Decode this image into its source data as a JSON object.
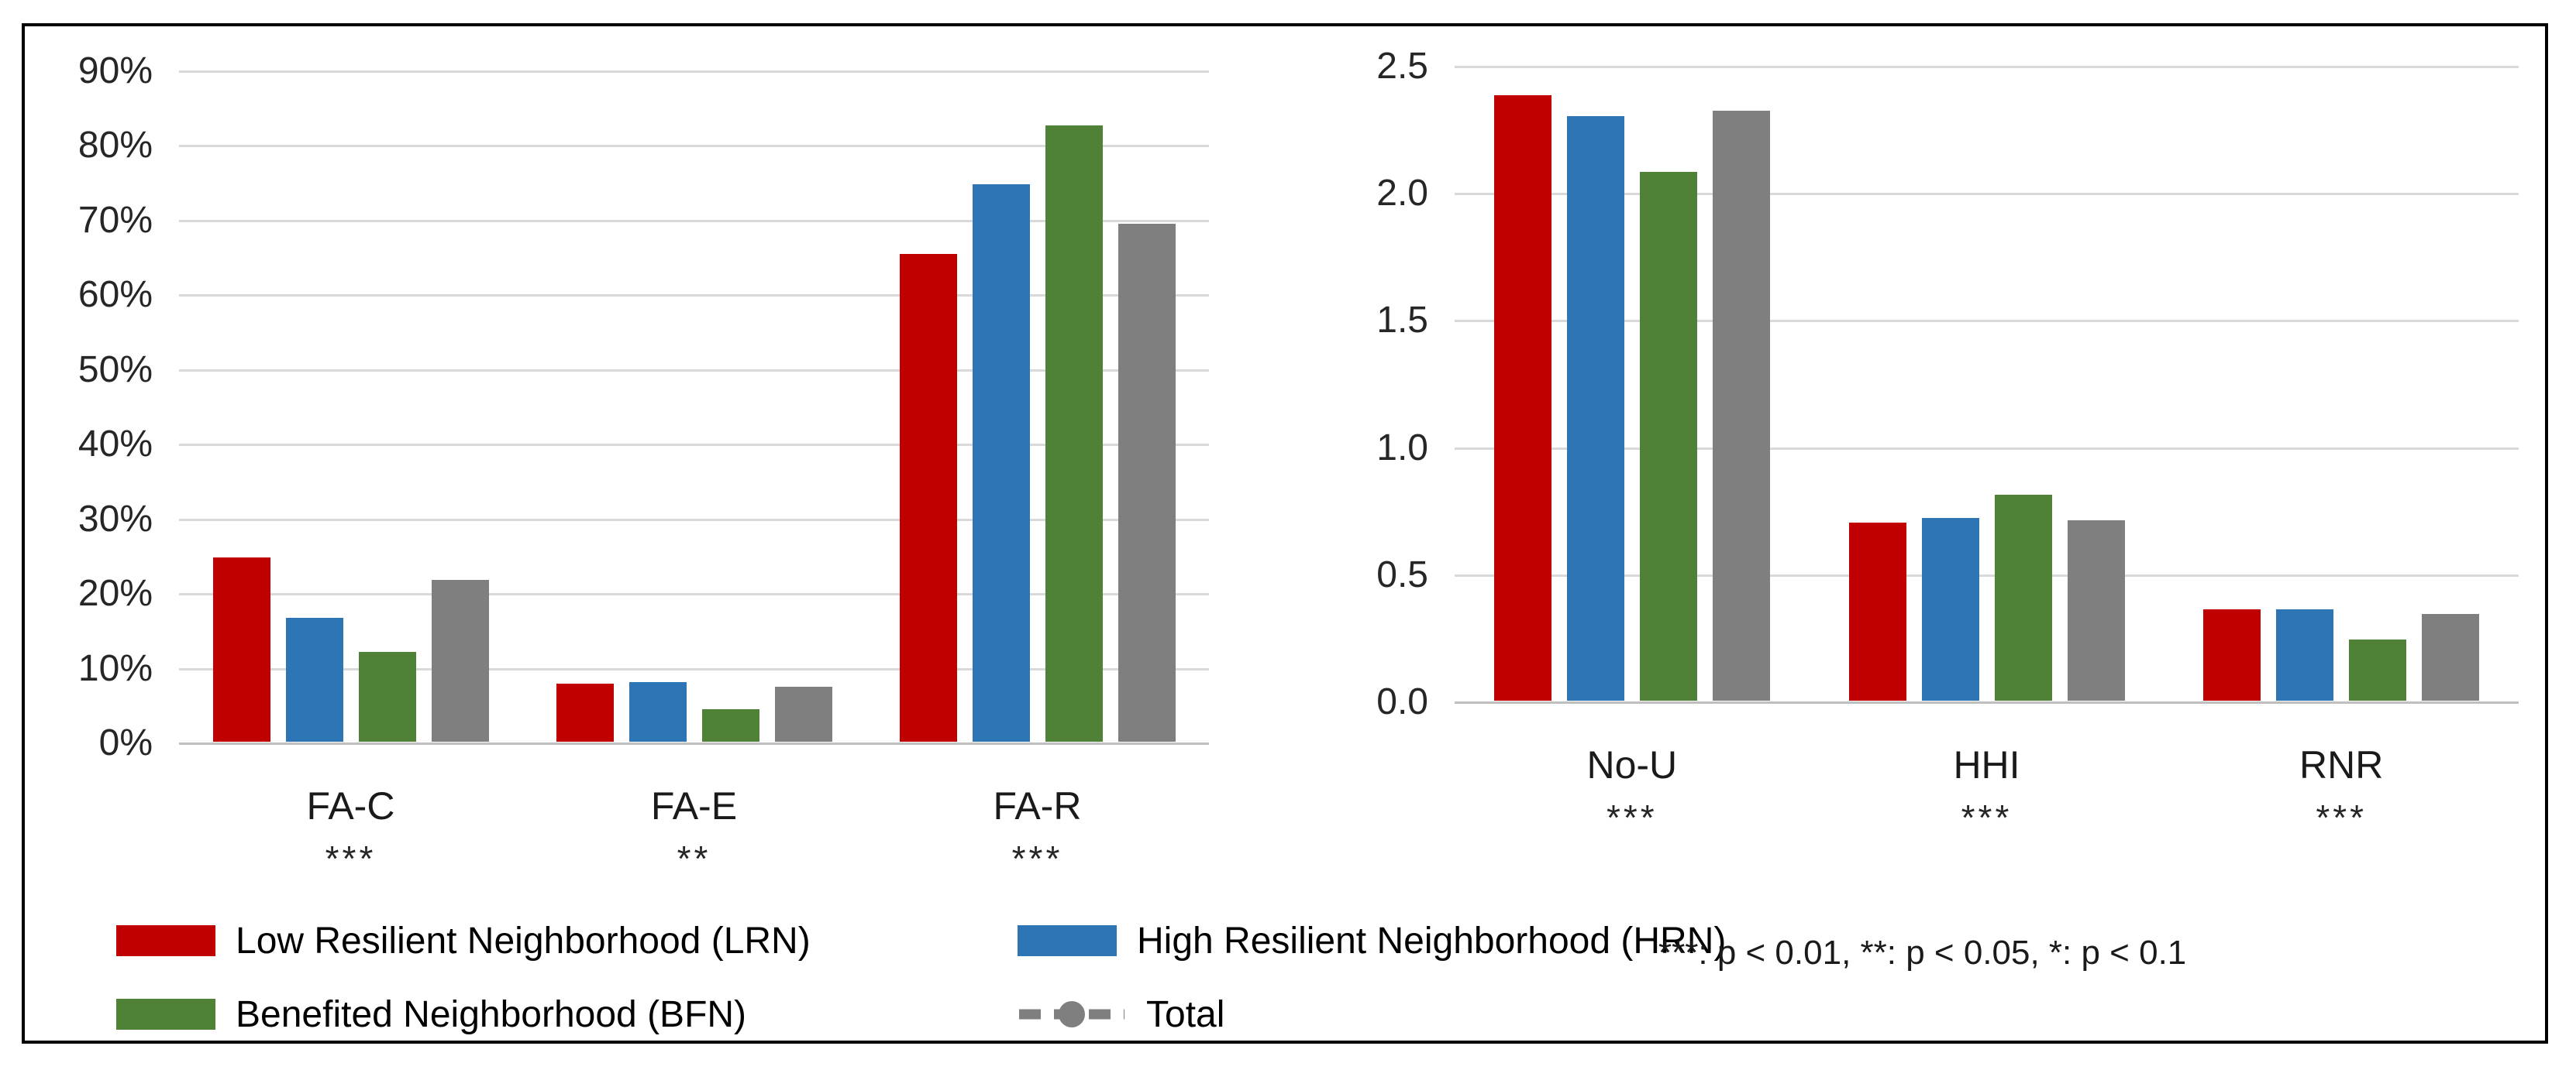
{
  "figure": {
    "note": "***: p < 0.01, **: p < 0.05, *: p < 0.1"
  },
  "legend": {
    "items": [
      {
        "label": "Low Resilient Neighborhood (LRN)",
        "color": "#C00000",
        "marker": "square"
      },
      {
        "label": "High Resilient Neighborhood (HRN)",
        "color": "#2E75B6",
        "marker": "square"
      },
      {
        "label": "Benefited Neighborhood (BFN)",
        "color": "#4F8136",
        "marker": "square"
      },
      {
        "label": "Total",
        "color": "#7F7F7F",
        "marker": "dashed-line-circle"
      }
    ]
  },
  "chart_data": [
    {
      "type": "bar",
      "title": "",
      "xlabel": "",
      "ylabel": "",
      "categories": [
        "FA-C",
        "FA-E",
        "FA-R"
      ],
      "significance": [
        "***",
        "**",
        "***"
      ],
      "series": [
        {
          "name": "Low Resilient Neighborhood (LRN)",
          "values": [
            24.7,
            7.8,
            65.3
          ]
        },
        {
          "name": "High Resilient Neighborhood (HRN)",
          "values": [
            16.6,
            8.0,
            74.7
          ]
        },
        {
          "name": "Benefited Neighborhood (BFN)",
          "values": [
            12.0,
            4.4,
            82.5
          ]
        },
        {
          "name": "Total",
          "values": [
            21.7,
            7.4,
            69.4
          ]
        }
      ],
      "ylim": [
        0,
        90
      ],
      "ytick_step": 10,
      "y_ticks": [
        "0%",
        "10%",
        "20%",
        "30%",
        "40%",
        "50%",
        "60%",
        "70%",
        "80%",
        "90%"
      ],
      "grid": true,
      "legend_position": "bottom"
    },
    {
      "type": "bar",
      "title": "",
      "xlabel": "",
      "ylabel": "",
      "categories": [
        "No-U",
        "HHI",
        "RNR"
      ],
      "significance": [
        "***",
        "***",
        "***"
      ],
      "series": [
        {
          "name": "Low Resilient Neighborhood (LRN)",
          "values": [
            2.38,
            0.7,
            0.36
          ]
        },
        {
          "name": "High Resilient Neighborhood (HRN)",
          "values": [
            2.3,
            0.72,
            0.36
          ]
        },
        {
          "name": "Benefited Neighborhood (BFN)",
          "values": [
            2.08,
            0.81,
            0.24
          ]
        },
        {
          "name": "Total",
          "values": [
            2.32,
            0.71,
            0.34
          ]
        }
      ],
      "ylim": [
        0,
        2.5
      ],
      "ytick_step": 0.5,
      "y_ticks": [
        "0.0",
        "0.5",
        "1.0",
        "1.5",
        "2.0",
        "2.5"
      ],
      "grid": true,
      "legend_position": "bottom"
    }
  ]
}
